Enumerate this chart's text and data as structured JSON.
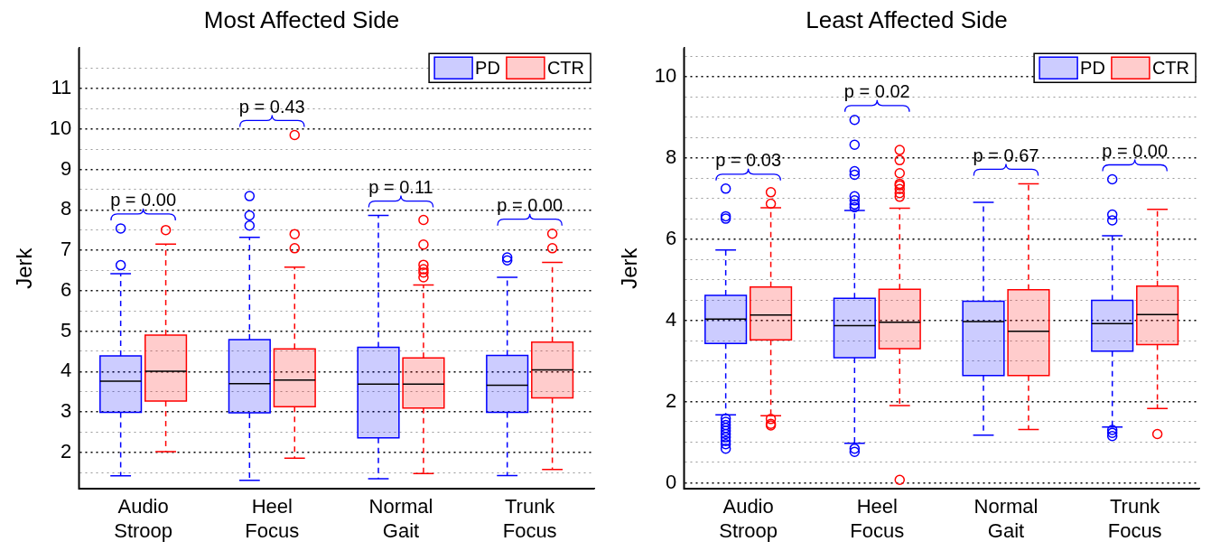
{
  "chart_data": [
    {
      "type": "box",
      "title": "Most Affected Side",
      "ylabel": "Jerk",
      "categories": [
        "Audio Stroop",
        "Heel Focus",
        "Normal Gait",
        "Trunk Focus"
      ],
      "ylim": [
        1.1,
        12
      ],
      "yticks": [
        {
          "value": 1.5,
          "label": null
        },
        2,
        {
          "value": 2.5,
          "label": null
        },
        3,
        {
          "value": 3.5,
          "label": null
        },
        4,
        {
          "value": 4.5,
          "label": null
        },
        5,
        {
          "value": 5.5,
          "label": null
        },
        6,
        {
          "value": 6.5,
          "label": null
        },
        7,
        {
          "value": 7.5,
          "label": null
        },
        8,
        {
          "value": 8.5,
          "label": null
        },
        9,
        {
          "value": 9.5,
          "label": null
        },
        10,
        {
          "value": 10.5,
          "label": null
        },
        11,
        {
          "value": 11.5,
          "label": null
        }
      ],
      "grid": "y",
      "legend": "top right",
      "series": [
        {
          "name": "PD",
          "color": "#0000ff",
          "boxes": [
            {
              "low": 1.42,
              "q1": 2.99,
              "median": 3.76,
              "q3": 4.39,
              "high": 6.42,
              "outliers": [
                6.63,
                7.54
              ]
            },
            {
              "low": 1.31,
              "q1": 2.98,
              "median": 3.7,
              "q3": 4.79,
              "high": 7.32,
              "outliers": [
                7.61,
                7.86,
                8.34
              ]
            },
            {
              "low": 1.35,
              "q1": 2.36,
              "median": 3.69,
              "q3": 4.6,
              "high": 7.86
            },
            {
              "low": 1.43,
              "q1": 2.99,
              "median": 3.66,
              "q3": 4.4,
              "high": 6.33,
              "outliers": [
                6.75,
                6.82
              ]
            }
          ]
        },
        {
          "name": "CTR",
          "color": "#ff0000",
          "boxes": [
            {
              "low": 2.02,
              "q1": 3.27,
              "median": 4.01,
              "q3": 4.9,
              "high": 7.15,
              "outliers": [
                7.5
              ]
            },
            {
              "low": 1.86,
              "q1": 3.13,
              "median": 3.79,
              "q3": 4.56,
              "high": 6.58,
              "outliers": [
                7.05,
                7.4,
                9.85
              ]
            },
            {
              "low": 1.48,
              "q1": 3.1,
              "median": 3.69,
              "q3": 4.34,
              "high": 6.14,
              "outliers": [
                6.33,
                6.45,
                6.53,
                6.64,
                7.14,
                7.75
              ]
            },
            {
              "low": 1.58,
              "q1": 3.35,
              "median": 4.04,
              "q3": 4.73,
              "high": 6.7,
              "outliers": [
                7.05,
                7.41
              ]
            }
          ]
        }
      ],
      "annotations": [
        "p = 0.00",
        "p = 0.43",
        "p = 0.11",
        "p = 0.00"
      ]
    },
    {
      "type": "box",
      "title": "Least Affected Side",
      "ylabel": "Jerk",
      "categories": [
        "Audio Stroop",
        "Heel Focus",
        "Normal Gait",
        "Trunk Focus"
      ],
      "ylim": [
        -0.15,
        10.7
      ],
      "yticks": [
        0,
        {
          "value": 0.5,
          "label": null
        },
        {
          "value": 1,
          "label": null
        },
        {
          "value": 1.5,
          "label": null
        },
        2,
        {
          "value": 2.5,
          "label": null
        },
        {
          "value": 3,
          "label": null
        },
        {
          "value": 3.5,
          "label": null
        },
        4,
        {
          "value": 4.5,
          "label": null
        },
        {
          "value": 5,
          "label": null
        },
        {
          "value": 5.5,
          "label": null
        },
        6,
        {
          "value": 6.5,
          "label": null
        },
        {
          "value": 7,
          "label": null
        },
        {
          "value": 7.5,
          "label": null
        },
        8,
        {
          "value": 8.5,
          "label": null
        },
        {
          "value": 9,
          "label": null
        },
        {
          "value": 9.5,
          "label": null
        },
        10,
        {
          "value": 10.5,
          "label": null
        }
      ],
      "grid": "y",
      "legend": "top right",
      "series": [
        {
          "name": "PD",
          "color": "#0000ff",
          "boxes": [
            {
              "low": 1.67,
              "q1": 3.43,
              "median": 4.03,
              "q3": 4.61,
              "high": 5.73,
              "outliers": [
                6.5,
                6.56,
                7.24,
                1.58,
                1.5,
                1.42,
                1.35,
                1.28,
                1.2,
                1.12,
                1.03,
                0.95,
                0.84
              ]
            },
            {
              "low": 0.97,
              "q1": 3.08,
              "median": 3.87,
              "q3": 4.54,
              "high": 6.7,
              "outliers": [
                6.78,
                6.85,
                6.95,
                7.05,
                7.58,
                7.67,
                8.32,
                8.93,
                0.84,
                0.76
              ]
            },
            {
              "low": 1.17,
              "q1": 2.64,
              "median": 3.97,
              "q3": 4.47,
              "high": 6.9
            },
            {
              "low": 1.37,
              "q1": 3.24,
              "median": 3.92,
              "q3": 4.49,
              "high": 6.08,
              "outliers": [
                6.46,
                6.6,
                7.47,
                1.3,
                1.23,
                1.15
              ]
            }
          ]
        },
        {
          "name": "CTR",
          "color": "#ff0000",
          "boxes": [
            {
              "low": 1.65,
              "q1": 3.52,
              "median": 4.13,
              "q3": 4.82,
              "high": 6.77,
              "outliers": [
                6.87,
                7.15,
                1.57,
                1.45,
                1.41
              ]
            },
            {
              "low": 1.9,
              "q1": 3.3,
              "median": 3.95,
              "q3": 4.76,
              "high": 6.76,
              "outliers": [
                7.04,
                7.13,
                7.23,
                7.32,
                7.36,
                7.62,
                7.94,
                8.19,
                0.07
              ]
            },
            {
              "low": 1.31,
              "q1": 2.64,
              "median": 3.73,
              "q3": 4.75,
              "high": 7.36
            },
            {
              "low": 1.83,
              "q1": 3.4,
              "median": 4.14,
              "q3": 4.84,
              "high": 6.73,
              "outliers": [
                1.2
              ]
            }
          ]
        }
      ],
      "annotations": [
        "p = 0.03",
        "p = 0.02",
        "p = 0.67",
        "p = 0.00"
      ]
    }
  ]
}
